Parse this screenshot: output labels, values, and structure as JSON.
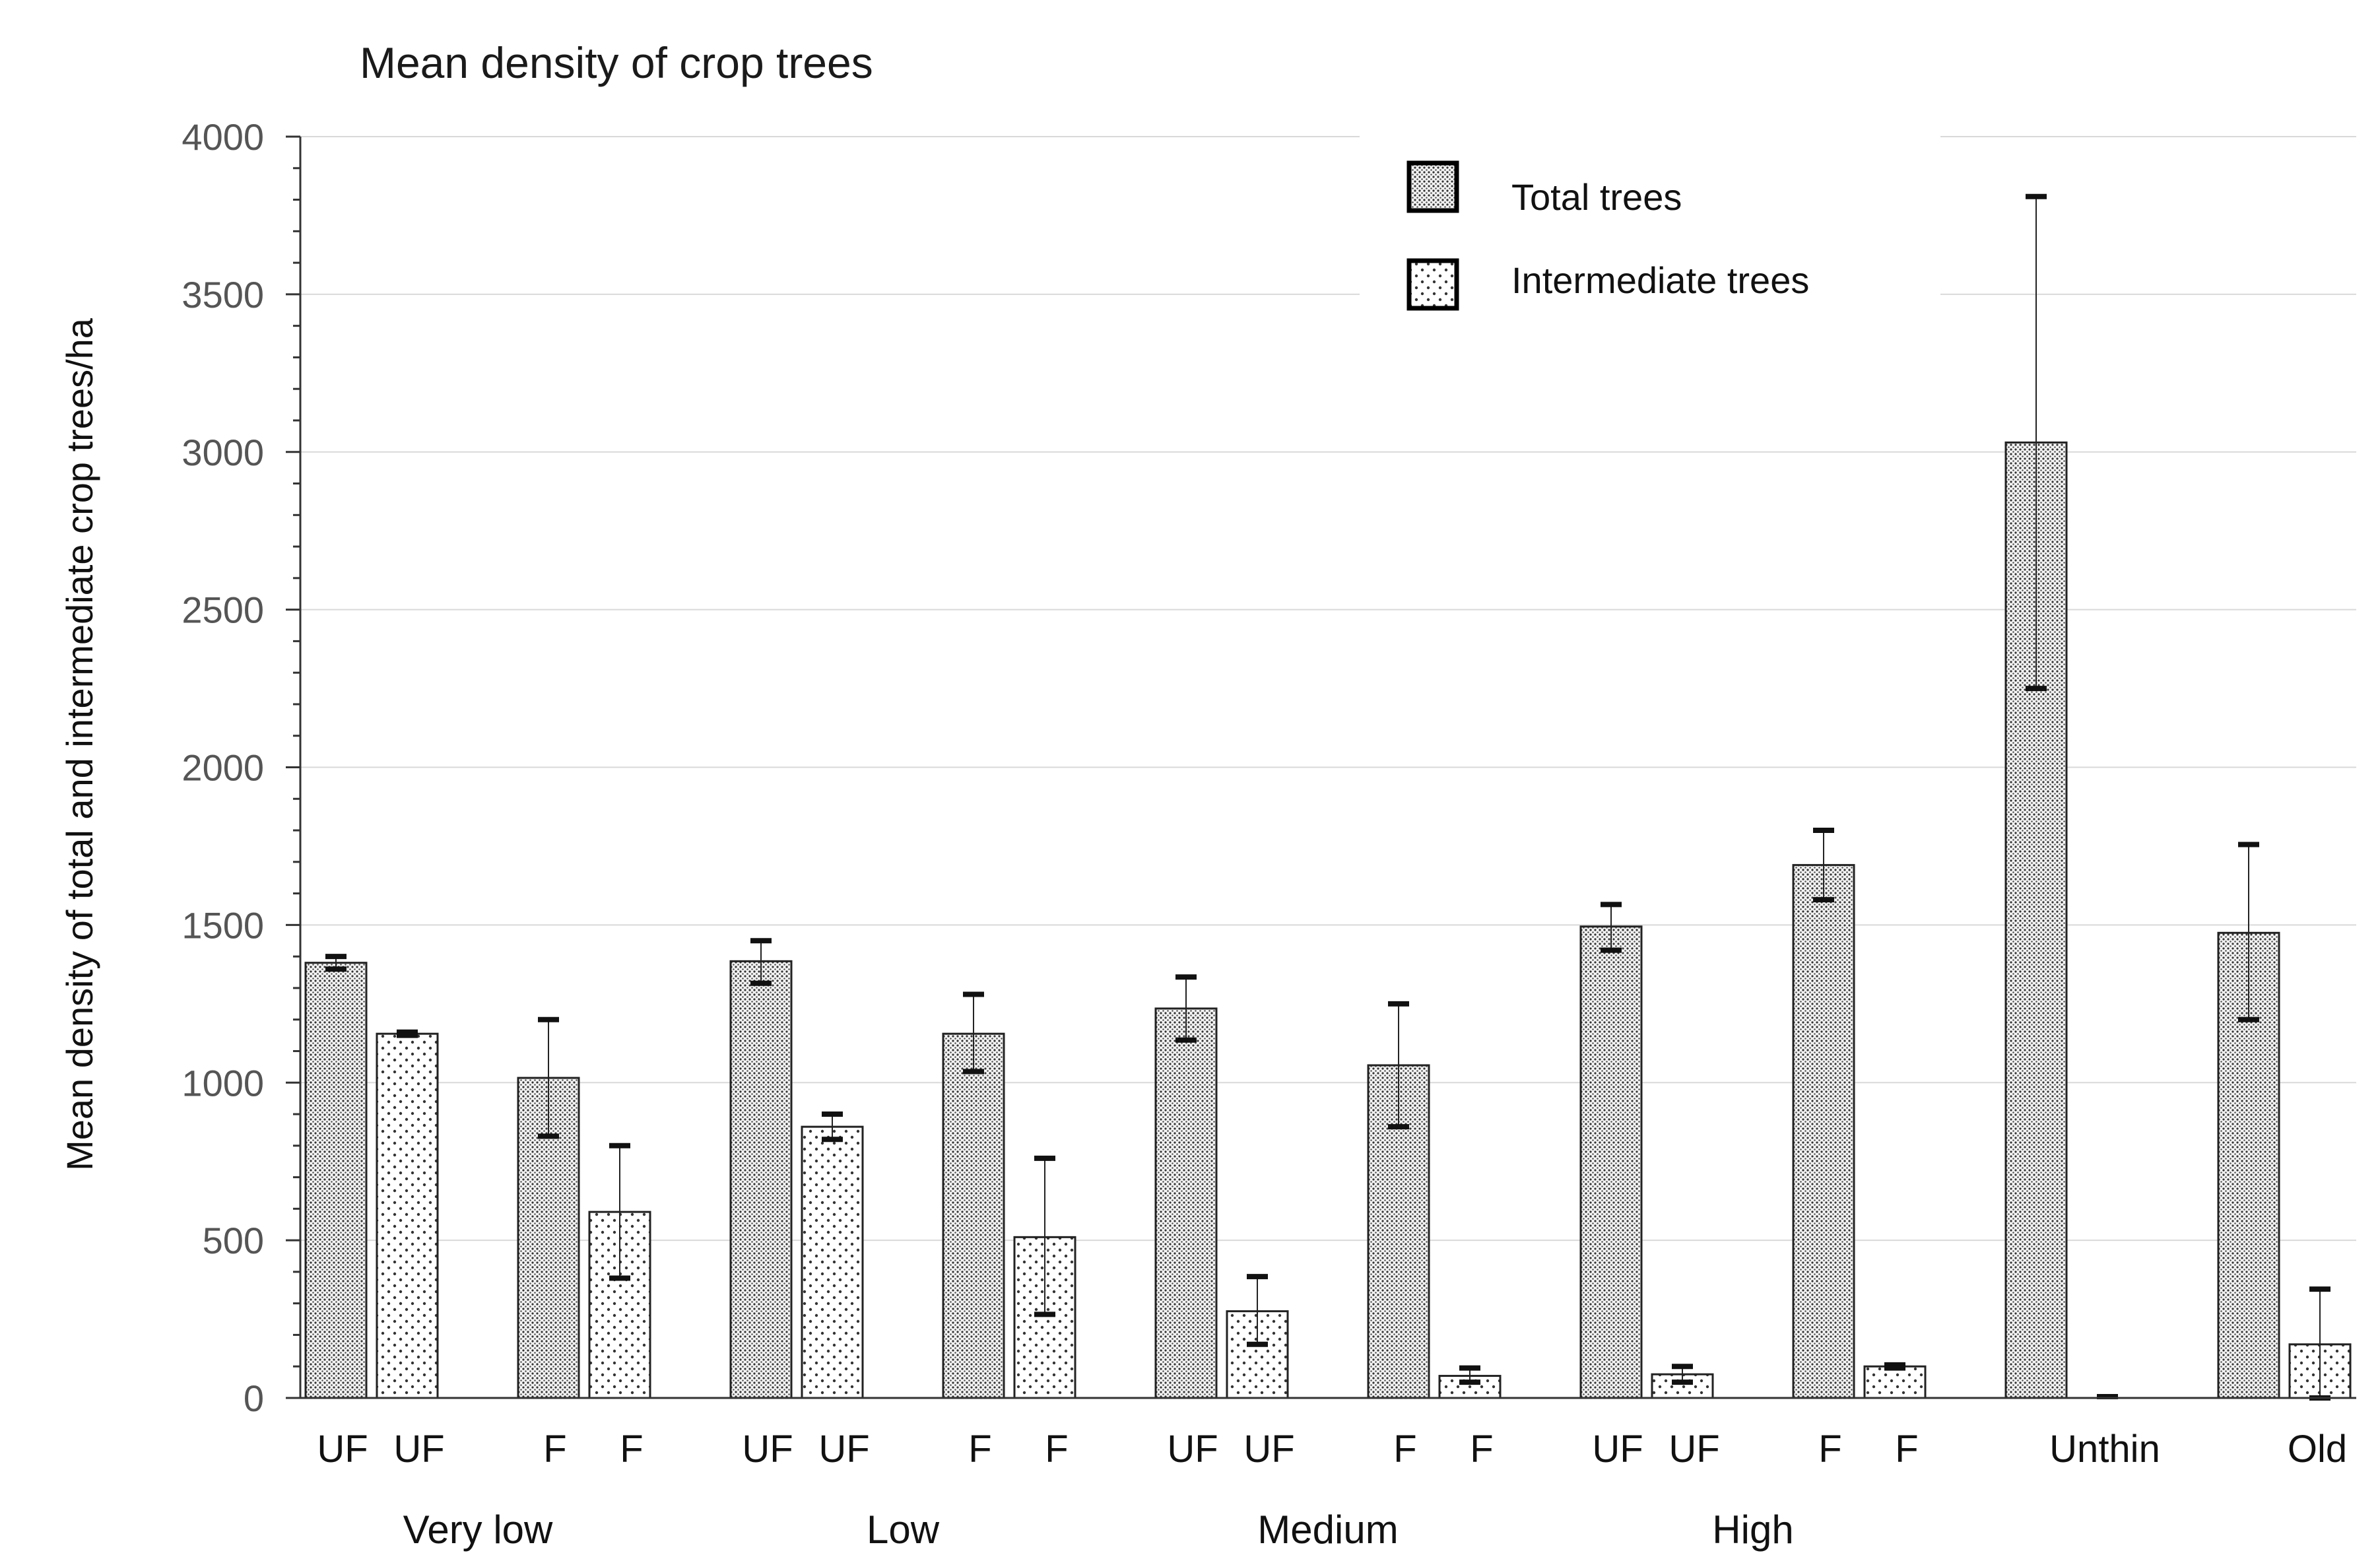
{
  "chart_data": {
    "type": "bar",
    "title": "Mean density of crop trees",
    "ylabel": "Mean density of total and intermediate crop trees/ha",
    "xlabel": "",
    "ylim": [
      0,
      4000
    ],
    "yticks": [
      0,
      500,
      1000,
      1500,
      2000,
      2500,
      3000,
      3500,
      4000
    ],
    "legend": {
      "position": "top-center",
      "entries": [
        {
          "name": "Total trees",
          "pattern": "dense-dots"
        },
        {
          "name": "Intermediate trees",
          "pattern": "sparse-dots"
        }
      ]
    },
    "groups": [
      {
        "label": "Very low",
        "categories": [
          0,
          1
        ]
      },
      {
        "label": "Low",
        "categories": [
          2,
          3
        ]
      },
      {
        "label": "Medium",
        "categories": [
          4,
          5
        ]
      },
      {
        "label": "High",
        "categories": [
          6,
          7
        ]
      }
    ],
    "categories": [
      {
        "label_total": "UF",
        "label_intermediate": "UF",
        "total": 1380,
        "total_err_low": 1360,
        "total_err_high": 1400,
        "intermediate": 1155,
        "intermediate_err_low": 1150,
        "intermediate_err_high": 1160
      },
      {
        "label_total": "F",
        "label_intermediate": "F",
        "total": 1015,
        "total_err_low": 830,
        "total_err_high": 1200,
        "intermediate": 590,
        "intermediate_err_low": 380,
        "intermediate_err_high": 800
      },
      {
        "label_total": "UF",
        "label_intermediate": "UF",
        "total": 1385,
        "total_err_low": 1315,
        "total_err_high": 1450,
        "intermediate": 860,
        "intermediate_err_low": 820,
        "intermediate_err_high": 900
      },
      {
        "label_total": "F",
        "label_intermediate": "F",
        "total": 1155,
        "total_err_low": 1035,
        "total_err_high": 1280,
        "intermediate": 510,
        "intermediate_err_low": 265,
        "intermediate_err_high": 760
      },
      {
        "label_total": "UF",
        "label_intermediate": "UF",
        "total": 1235,
        "total_err_low": 1135,
        "total_err_high": 1335,
        "intermediate": 275,
        "intermediate_err_low": 170,
        "intermediate_err_high": 385
      },
      {
        "label_total": "F",
        "label_intermediate": "F",
        "total": 1055,
        "total_err_low": 860,
        "total_err_high": 1250,
        "intermediate": 70,
        "intermediate_err_low": 50,
        "intermediate_err_high": 95
      },
      {
        "label_total": "UF",
        "label_intermediate": "UF",
        "total": 1495,
        "total_err_low": 1420,
        "total_err_high": 1565,
        "intermediate": 75,
        "intermediate_err_low": 50,
        "intermediate_err_high": 100
      },
      {
        "label_total": "F",
        "label_intermediate": "F",
        "total": 1690,
        "total_err_low": 1580,
        "total_err_high": 1800,
        "intermediate": 100,
        "intermediate_err_low": 95,
        "intermediate_err_high": 105
      },
      {
        "label_single": "Unthin",
        "total": 3030,
        "total_err_low": 2250,
        "total_err_high": 3810,
        "intermediate": 0,
        "intermediate_err_low": 0,
        "intermediate_err_high": 0
      },
      {
        "label_single": "Old",
        "total": 1475,
        "total_err_low": 1200,
        "total_err_high": 1755,
        "intermediate": 170,
        "intermediate_err_low": 0,
        "intermediate_err_high": 345
      }
    ]
  }
}
